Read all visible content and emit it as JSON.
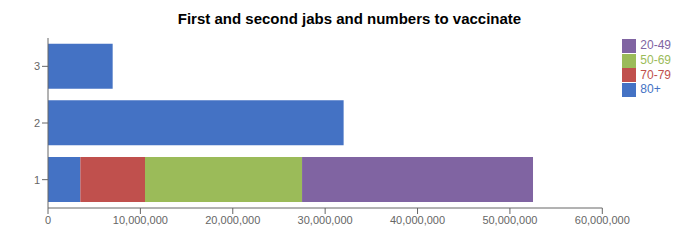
{
  "chart_data": {
    "type": "bar",
    "title": "First and second jabs and numbers to vaccinate",
    "orientation": "horizontal",
    "stacked": true,
    "categories": [
      "1",
      "2",
      "3"
    ],
    "series": [
      {
        "name": "80+",
        "color": "#4472C4",
        "values": [
          3500000,
          32000000,
          7000000
        ]
      },
      {
        "name": "70-79",
        "color": "#C0504D",
        "values": [
          7000000,
          0,
          0
        ]
      },
      {
        "name": "50-69",
        "color": "#9BBB59",
        "values": [
          17000000,
          0,
          0
        ]
      },
      {
        "name": "20-49",
        "color": "#8064A2",
        "values": [
          25000000,
          0,
          0
        ]
      }
    ],
    "xlim": [
      0,
      60000000
    ],
    "xticks": [
      0,
      {
        "value": 10000000,
        "label": "10,000,000"
      },
      {
        "value": 20000000,
        "label": "20,000,000"
      },
      {
        "value": 30000000,
        "label": "30,000,000"
      },
      {
        "value": 40000000,
        "label": "40,000,000"
      },
      {
        "value": 50000000,
        "label": "50,000,000"
      },
      {
        "value": 60000000,
        "label": "60,000,000"
      }
    ],
    "grid": false,
    "legend": "right"
  }
}
